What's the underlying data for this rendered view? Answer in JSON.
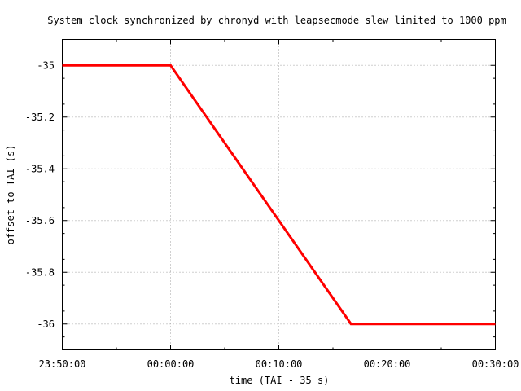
{
  "chart_data": {
    "type": "line",
    "title": "System clock synchronized by chronyd with leapsecmode slew limited to 1000 ppm",
    "xlabel": "time (TAI - 35 s)",
    "ylabel": "offset to TAI (s)",
    "x_ticks": [
      "23:50:00",
      "00:00:00",
      "00:10:00",
      "00:20:00",
      "00:30:00"
    ],
    "y_ticks": [
      "-35",
      "-35.2",
      "-35.4",
      "-35.6",
      "-35.8",
      "-36"
    ],
    "xlim_seconds": [
      -600,
      1800
    ],
    "ylim": [
      -36.1,
      -34.9
    ],
    "grid": true,
    "series": [
      {
        "color": "#ff0000",
        "x_seconds": [
          -600,
          0,
          1000,
          1800
        ],
        "y": [
          -35,
          -35,
          -36,
          -36
        ]
      }
    ]
  }
}
